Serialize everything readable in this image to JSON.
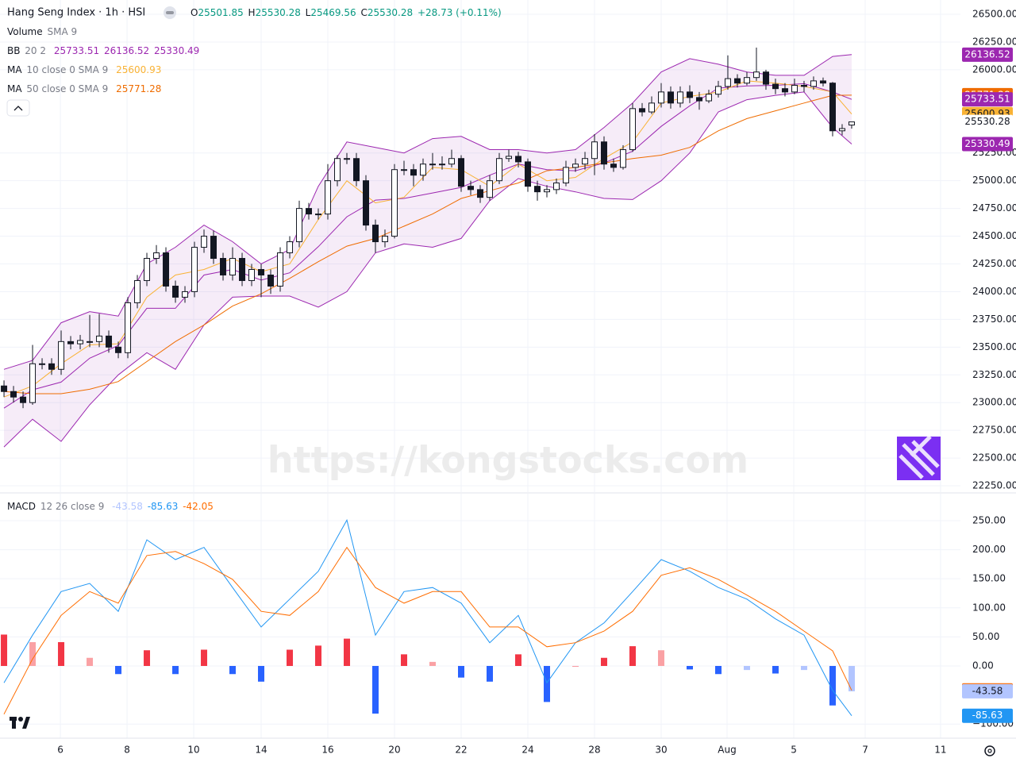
{
  "chart_data": [
    {
      "type": "candlestick",
      "title": "Hang Seng Index · 1h · HSI",
      "ohlc_labels": [
        "O",
        "H",
        "L",
        "C"
      ],
      "change": "+28.73 (+0.11%)",
      "value_color": "#089981",
      "up_color": "#ffffff",
      "down_color": "#131722",
      "volume": {
        "name": "Volume",
        "params": "SMA 9"
      },
      "watermark": "https://kongstocks.com",
      "open": [
        23150,
        23100,
        23050,
        23000,
        23350,
        23350,
        23300,
        23550,
        23530,
        23550,
        23550,
        23600,
        23500,
        23450,
        23900,
        24100,
        24300,
        24350,
        24050,
        23950,
        24000,
        24400,
        24500,
        24300,
        24150,
        24300,
        24100,
        24200,
        24150,
        24050,
        24350,
        24450,
        24750,
        24700,
        24700,
        25000,
        25200,
        25200,
        25000,
        24600,
        24450,
        24500,
        25100,
        25100,
        25050,
        25150,
        25150,
        25150,
        25200,
        24950,
        24920,
        24850,
        25000,
        25200,
        25220,
        25170,
        24950,
        24900,
        24920,
        24980,
        25120,
        25150,
        25200,
        25350,
        25150,
        25120,
        25280,
        25650,
        25620,
        25700,
        25800,
        25700,
        25800,
        25750,
        25720,
        25780,
        25850,
        25920,
        25880,
        25930,
        25980,
        25870,
        25830,
        25800,
        25860,
        25850,
        25900,
        25880,
        25450,
        25501.85
      ],
      "high": [
        23200,
        23150,
        23100,
        23520,
        23400,
        23400,
        23650,
        23600,
        23610,
        23790,
        23800,
        23650,
        23550,
        23950,
        24150,
        24350,
        24420,
        24400,
        24100,
        24050,
        24450,
        24560,
        24550,
        24350,
        24400,
        24350,
        24250,
        24250,
        24200,
        24400,
        24500,
        24820,
        24800,
        24750,
        25150,
        25230,
        25250,
        25250,
        25050,
        24650,
        24560,
        25150,
        25180,
        25150,
        25200,
        25250,
        25220,
        25280,
        25230,
        25000,
        24960,
        25050,
        25250,
        25280,
        25260,
        25200,
        25000,
        24960,
        25020,
        25180,
        25200,
        25260,
        25420,
        25400,
        25200,
        25320,
        25700,
        25700,
        25760,
        25880,
        25850,
        25850,
        25860,
        25800,
        25820,
        25900,
        26130,
        25960,
        25980,
        26200,
        26000,
        25920,
        25880,
        25920,
        25900,
        25940,
        25930,
        25890,
        25510,
        25530.28
      ],
      "low": [
        23050,
        23000,
        22950,
        22980,
        23300,
        23250,
        23250,
        23480,
        23480,
        23500,
        23500,
        23450,
        23400,
        23400,
        23850,
        24050,
        24250,
        24000,
        23900,
        23900,
        23950,
        24350,
        24250,
        24100,
        24100,
        24050,
        24050,
        23950,
        23980,
        24000,
        24300,
        24400,
        24650,
        24650,
        24650,
        24950,
        25150,
        24950,
        24550,
        24350,
        24400,
        24480,
        25050,
        24950,
        25000,
        25100,
        25100,
        25120,
        24900,
        24870,
        24800,
        24820,
        24970,
        25170,
        25120,
        24900,
        24820,
        24850,
        24880,
        24950,
        25080,
        25100,
        25050,
        25100,
        25080,
        25100,
        25260,
        25580,
        25600,
        25660,
        25650,
        25660,
        25700,
        25640,
        25700,
        25750,
        25820,
        25840,
        25860,
        25900,
        25820,
        25780,
        25760,
        25780,
        25800,
        25820,
        25850,
        25400,
        25410,
        25469.56
      ],
      "close": [
        23100,
        23050,
        23000,
        23350,
        23350,
        23300,
        23550,
        23530,
        23560,
        23550,
        23600,
        23500,
        23450,
        23900,
        24100,
        24300,
        24350,
        24050,
        23950,
        24000,
        24400,
        24500,
        24300,
        24150,
        24300,
        24100,
        24200,
        24150,
        24050,
        24350,
        24450,
        24750,
        24700,
        24700,
        25000,
        25200,
        25200,
        25000,
        24600,
        24450,
        24500,
        25100,
        25100,
        25050,
        25150,
        25150,
        25150,
        25200,
        24950,
        24920,
        24850,
        25000,
        25200,
        25220,
        25170,
        24950,
        24900,
        24920,
        24980,
        25120,
        25150,
        25200,
        25350,
        25150,
        25120,
        25280,
        25650,
        25620,
        25700,
        25800,
        25700,
        25800,
        25750,
        25720,
        25780,
        25850,
        25920,
        25880,
        25930,
        25980,
        25870,
        25830,
        25800,
        25860,
        25850,
        25900,
        25880,
        25450,
        25470,
        25530.28
      ],
      "overlay_x": [
        0,
        3,
        6,
        9,
        12,
        15,
        18,
        21,
        24,
        27,
        30,
        33,
        36,
        39,
        42,
        45,
        48,
        51,
        54,
        57,
        60,
        63,
        66,
        69,
        72,
        75,
        78,
        81,
        84,
        87,
        89
      ],
      "overlays": [
        {
          "name": "BB",
          "params": "20 2",
          "color": "#9c27b0",
          "fill": "rgba(156,39,176,0.09)",
          "basis": [
            22950,
            23115,
            23185,
            23400,
            23515,
            23850,
            23850,
            24150,
            24200,
            24105,
            24170,
            24405,
            24675,
            24825,
            24840,
            24890,
            24940,
            25050,
            25150,
            25100,
            25090,
            25160,
            25265,
            25490,
            25675,
            25835,
            25855,
            25860,
            25875,
            25800,
            25733.51
          ],
          "upper": [
            23300,
            23380,
            23720,
            23820,
            23780,
            24250,
            24400,
            24600,
            24450,
            24250,
            24380,
            24950,
            25350,
            25300,
            25250,
            25380,
            25400,
            25280,
            25280,
            25250,
            25280,
            25480,
            25700,
            25980,
            26100,
            26050,
            25980,
            25950,
            25950,
            26120,
            26136.52
          ],
          "lower": [
            22600,
            22850,
            22650,
            22980,
            23250,
            23450,
            23300,
            23700,
            23950,
            23960,
            23960,
            23860,
            24000,
            24350,
            24430,
            24400,
            24480,
            24820,
            25020,
            24950,
            24900,
            24840,
            24830,
            25000,
            25250,
            25620,
            25730,
            25770,
            25800,
            25480,
            25330.49
          ]
        },
        {
          "name": "MA",
          "params": "10 close 0 SMA 9",
          "color": "#f9b234",
          "values": [
            23050,
            23150,
            23350,
            23520,
            23530,
            23950,
            24150,
            24200,
            24300,
            24180,
            24250,
            24650,
            25000,
            24800,
            24850,
            25120,
            25100,
            24950,
            25150,
            25000,
            25030,
            25200,
            25350,
            25700,
            25760,
            25800,
            25900,
            25880,
            25850,
            25800,
            25600.93
          ]
        },
        {
          "name": "MA",
          "params": "50 close 0 SMA 9",
          "color": "#ef6c00",
          "values": [
            23100,
            23080,
            23080,
            23120,
            23190,
            23370,
            23550,
            23700,
            23870,
            23980,
            24120,
            24270,
            24410,
            24480,
            24590,
            24700,
            24840,
            24910,
            24980,
            25090,
            25120,
            25160,
            25200,
            25230,
            25300,
            25450,
            25560,
            25630,
            25700,
            25770,
            25771.28
          ]
        }
      ],
      "xlim": [
        -0.42,
        100.42
      ],
      "xticks": [
        {
          "value": 5.92,
          "label": "6"
        },
        {
          "value": 12.92,
          "label": "8"
        },
        {
          "value": 19.92,
          "label": "10"
        },
        {
          "value": 27,
          "label": "14"
        },
        {
          "value": 34,
          "label": "16"
        },
        {
          "value": 41,
          "label": "20"
        },
        {
          "value": 48,
          "label": "22"
        },
        {
          "value": 55,
          "label": "24"
        },
        {
          "value": 62,
          "label": "28"
        },
        {
          "value": 69,
          "label": "30"
        },
        {
          "value": 75.92,
          "label": "Aug"
        },
        {
          "value": 82.92,
          "label": "5"
        },
        {
          "value": 90.42,
          "label": "7"
        },
        {
          "value": 98.33,
          "label": "11"
        }
      ],
      "ylim": [
        22193,
        26629
      ],
      "yticks": [
        {
          "value": 26500,
          "label": "26500.00"
        },
        {
          "value": 26250,
          "label": "26250.00"
        },
        {
          "value": 26000,
          "label": "26000.00"
        },
        {
          "value": 25250,
          "label": "25250.00"
        },
        {
          "value": 25000,
          "label": "25000.00"
        },
        {
          "value": 24750,
          "label": "24750.00"
        },
        {
          "value": 24500,
          "label": "24500.00"
        },
        {
          "value": 24250,
          "label": "24250.00"
        },
        {
          "value": 24000,
          "label": "24000.00"
        },
        {
          "value": 23750,
          "label": "23750.00"
        },
        {
          "value": 23500,
          "label": "23500.00"
        },
        {
          "value": 23250,
          "label": "23250.00"
        },
        {
          "value": 23000,
          "label": "23000.00"
        },
        {
          "value": 22750,
          "label": "22750.00"
        },
        {
          "value": 22500,
          "label": "22500.00"
        },
        {
          "value": 22250,
          "label": "22250.00"
        }
      ],
      "grid": true
    },
    {
      "type": "macd",
      "name": "MACD",
      "params": "12 26 close 9",
      "x": [
        0,
        3,
        6,
        9,
        12,
        15,
        18,
        21,
        24,
        27,
        30,
        33,
        36,
        39,
        42,
        45,
        48,
        51,
        54,
        57,
        60,
        63,
        66,
        69,
        72,
        75,
        78,
        81,
        84,
        87,
        89
      ],
      "histogram": {
        "colors": {
          "rising_above": "#f23645",
          "falling_above": "#faa1a4",
          "falling_below": "#2962ff",
          "rising_below": "#b2c5ff"
        },
        "values": [
          54,
          41,
          41,
          14,
          -14,
          27,
          -14,
          28,
          -14,
          -27,
          28,
          35,
          47,
          -82,
          20,
          7,
          -20,
          -27,
          20,
          -62,
          0,
          14,
          34,
          27,
          -6,
          -14,
          -7,
          -13,
          -7,
          -68,
          -43.58
        ]
      },
      "macd": {
        "color": "#2196f3",
        "values": [
          -29,
          53,
          128,
          142,
          94,
          217,
          183,
          204,
          135,
          67,
          115,
          163,
          251,
          53,
          128,
          135,
          108,
          40,
          87,
          -29,
          40,
          74,
          128,
          183,
          163,
          135,
          115,
          81,
          53,
          -42,
          -85.63
        ]
      },
      "signal": {
        "color": "#ff6d00",
        "values": [
          -83,
          12,
          87,
          128,
          108,
          190,
          197,
          176,
          149,
          94,
          87,
          128,
          204,
          135,
          108,
          128,
          128,
          67,
          67,
          33,
          40,
          60,
          94,
          156,
          169,
          149,
          122,
          94,
          60,
          26,
          -42.05
        ]
      },
      "xlim": [
        -0.42,
        100.42
      ],
      "ylim": [
        -124.3,
        296.4
      ],
      "yticks": [
        {
          "value": 250,
          "label": "250.00"
        },
        {
          "value": 200,
          "label": "200.00"
        },
        {
          "value": 150,
          "label": "150.00"
        },
        {
          "value": 100,
          "label": "100.00"
        },
        {
          "value": 50,
          "label": "50.00"
        },
        {
          "value": 0,
          "label": "0.00"
        },
        {
          "value": -100,
          "label": "−100.00"
        }
      ],
      "grid": true
    }
  ]
}
